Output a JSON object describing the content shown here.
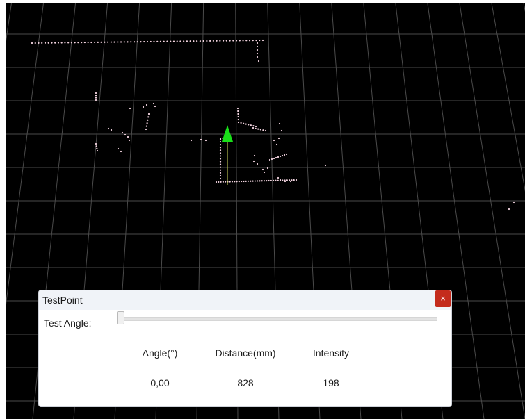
{
  "dialog": {
    "title": "TestPoint",
    "close_glyph": "×",
    "close_icon": "close-icon",
    "slider_label": "Test Angle:",
    "slider_value": 0
  },
  "table": {
    "headers": [
      "Angle(°)",
      "Distance(mm)",
      "Intensity"
    ],
    "values": [
      "0,00",
      "828",
      "198"
    ]
  },
  "colors": {
    "background": "#000000",
    "grid": "#4a4a4a",
    "points": "#f3d4e0",
    "axis_arrow": "#19e019",
    "close_button": "#c42b1c"
  }
}
